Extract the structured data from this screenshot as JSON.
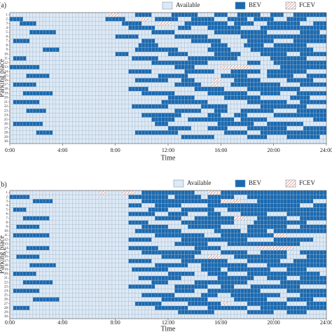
{
  "chart_data": [
    {
      "type": "heatmap",
      "label": "(a)",
      "xlabel": "Time",
      "ylabel": "Parking place",
      "series": [
        {
          "name": "Available",
          "color": "#dde9f5"
        },
        {
          "name": "BEV",
          "color": "#1a69b0"
        },
        {
          "name": "FCEV",
          "color": "#d9826e"
        }
      ],
      "xlim": [
        0,
        24
      ],
      "xticks": [
        {
          "value": 0,
          "label": "0:00"
        },
        {
          "value": 4,
          "label": "4:00"
        },
        {
          "value": 8,
          "label": "8:00"
        },
        {
          "value": 12,
          "label": "12:00"
        },
        {
          "value": 16,
          "label": "16:00"
        },
        {
          "value": 20,
          "label": "20:00"
        },
        {
          "value": 24,
          "label": "24:00"
        }
      ],
      "ylim": [
        0.5,
        30.5
      ],
      "yticks": [
        1,
        2,
        3,
        4,
        5,
        6,
        7,
        8,
        9,
        10,
        11,
        12,
        13,
        14,
        15,
        16,
        17,
        18,
        19,
        20,
        21,
        22,
        23,
        24,
        25,
        26,
        27,
        28,
        29,
        30
      ],
      "rows": [
        "000000000000000000000000000000222000001111100000011111111000001111000111111100011110001111111111",
        "111100000000000000000000000001111110000222001111111000011111110000111111001111110000111111000000",
        "000111110000000000000000000000000011111100000222200001111111111111001111110000111111111100001111",
        "000000000000000000000000000000000000111111110000000111100000111111111100000011111111111111111111",
        "000000111111110000000000000000000000000000011111110000000000001111111111111111000000000011111100",
        "000000000000000000000000000000001111111000000000001111111111000000000011111111111111111111111111",
        "011111000000000000000000000000000000000011110000000000011111111100000000111111110000001111111111",
        "000000000000000000000000000000000000000111111000000000000000011111000001111110001111111111000000",
        "000000000011111000000000000000000000001111111111111000000000111111100000011111111111111111110000",
        "000000000000000000000000000000001111000000000000111111000000001111111100000011111111000011111111",
        "011110000000000000000000000000000000011111111000000000111111111111111000000000011111111111000000",
        "000000000000000000000000000000000000000000011111111111111111000000000000111100001111111111111111",
        "111111111000000000000000000000000000000000000000001111110000000022222222200000000011111111111111",
        "000000000000000000000000000000000000111111100000000001111111110000011111111100111111111111000000",
        "000001111111000000000000000000000000000000000111111111000000000011111111000000111111110000111111",
        "000000000000000000000000000000000000001111111111000011110000002200001111111100000000111111110000",
        "011111110000000000000000000000000000000000000000001111111100022000011111111111111100000011111111",
        "000000000000000000000000000000000000111111000000000000001111111110000000111111111111111100000000",
        "000011111111100000000000000000000000000011111111110000000000111111111111000011111100000111111111",
        "000000000000000000000000000000000000000000000000111111110000000001111111111100000000011111100000",
        "011111111000000000000000000000000000000000000011111111111111000000000000111111111111000011111111",
        "000000000000000000000000000000000000011111111111000000000011111111000000000011111111111111000000",
        "000001111110000000000000000000000000000000000000001111111100001111000011111111110000000111111111",
        "000000000000000000000000000000000000000011111111111100000000111100001111000000001111111111111111",
        "000000000000000000000000000000000000000000011111110000111111111111110011111111000000000000001111",
        "011111111100000000000000000000000000000000001111000000000000000111111111110000111111111110000000",
        "000000000000000000000000000000000000000000000000111111100000111111000000111111111111000001111111",
        "000000001111100000000000000000000000001111111111111000000000000001111111000011111111111111111111",
        "000000000000000000000000000000000000000000000000000011111111110000000000111111000000111111111100",
        "000000000000000000000000000000000000000000000000000000000000000000000000000000000000000000000000"
      ]
    },
    {
      "type": "heatmap",
      "label": "(b)",
      "xlabel": "Time",
      "ylabel": "Parking place",
      "series": [
        {
          "name": "Available",
          "color": "#dde9f5"
        },
        {
          "name": "BEV",
          "color": "#1a69b0"
        },
        {
          "name": "FCEV",
          "color": "#d9826e"
        }
      ],
      "xlim": [
        0,
        24
      ],
      "xticks": [
        {
          "value": 0,
          "label": "0:00"
        },
        {
          "value": 4,
          "label": "4:00"
        },
        {
          "value": 8,
          "label": "8:00"
        },
        {
          "value": 12,
          "label": "12:00"
        },
        {
          "value": 16,
          "label": "16:00"
        },
        {
          "value": 20,
          "label": "20:00"
        },
        {
          "value": 24,
          "label": "24:00"
        }
      ],
      "ylim": [
        0.5,
        30.5
      ],
      "yticks": [
        1,
        2,
        3,
        4,
        5,
        6,
        7,
        8,
        9,
        10,
        11,
        12,
        13,
        14,
        15,
        16,
        17,
        18,
        19,
        20,
        21,
        22,
        23,
        24,
        25,
        26,
        27,
        28,
        29,
        30
      ],
      "rows": [
        "000000000000000000000000000220000022220011111111111111110000222211111111111111111111111111111111",
        "111111000000000000000000000000000000111111111111001111111100111111110000111111111111111111111111",
        "000000011111100000000000000000000000000011111111111111111111111122222200000111111111111111110000",
        "000000000000000000000000000000000000111100001111111100000000111111111111111111111111111100001111",
        "011110000000000000000000000000000000000000111111000011111111110000111111111111111111111111111111",
        "000000000000000000000000000000000000111111110000111111000000111100000011111111000000111111111111",
        "000011111111000000000000000000000000000000001111111100001111111111112222000111111111000011111111",
        "000000000000000000000000000000000000111111000000000011111111111111110000001111111111111111000000",
        "001111111000000000000000000000000000000011111111000000111111111100000000111111111111000011111111",
        "000000000000000000000000000000000000001111111111111100000000001111111100111111001111111111111111",
        "011111111111000000000000000000000000000000001111111111111110000011111111111111112222000000000000",
        "000000000000000000000000000000000000111111100000000011111111111111111111000000001111111111110000",
        "000000000000000000000000000000000000000000000000001111111111000000111111111111111111111100000000",
        "000001111111000000000000000000000000111111111000000000001111111100000000000222222222220000000000",
        "000000000000000000000000000000000000000011111111111111111100000011111111000011111111000011111111",
        "001111111000000000000000000000000000000000000011111111110000222200001111111111111111000000111111",
        "000000000000000000000000000000000000111111100000000011111111111111000000111111111100001111111111",
        "000000111111110000000000000000000000000000001111111111000011111111111111000000111111111111111111",
        "000000000000000000000000000000000000011111111111000000000011111100111111111111100000111111000000",
        "011111110000000000000000000000000000000000000000111111110000111111000000111111111111111111111100",
        "000000000000000000000000000000000000000111111111111100000000000111111111110000111111000011111111",
        "000011111111100000000000000000000000000000011111000000001111111111111111000000000011111111111111",
        "000000000000000000000000000000000000111111110000001111111111000011110000011111111111111100000000",
        "011111111000000000000000000000000000000000000000001111110000111111111111111100000000111111111111",
        "000000000000000000000000000000000000000011111111110000000011111000011111111111111100000011111111",
        "000000011111111000000000000000000000000000000011111111111111000000001111111111000000111111110000",
        "000000000000000000000000000000000000001111111100000000111111111122000000111111111111000000111111",
        "011111000000000000000000000000000000000000001111111111000000111111111111000011111111111111111111",
        "000000000000000000000000000000000000000000000000000111111111110000000000111111110000111111000000",
        "000000000000000000000000000000000000000000000000000000000000000000000000000000000000000000000000"
      ]
    }
  ]
}
